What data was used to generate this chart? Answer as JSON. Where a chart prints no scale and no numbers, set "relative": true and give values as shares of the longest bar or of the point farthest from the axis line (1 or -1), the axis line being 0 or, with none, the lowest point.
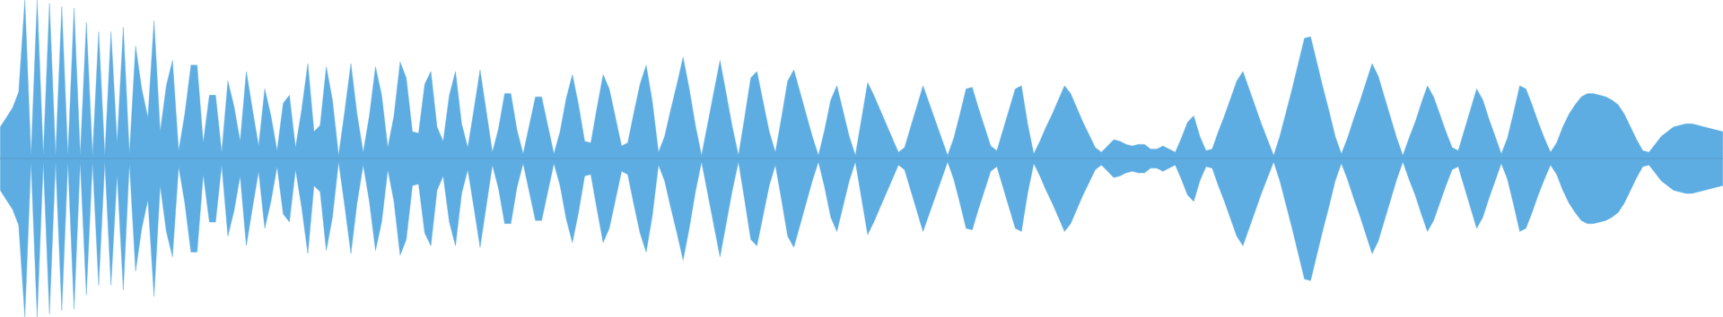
{
  "chart_data": {
    "type": "area",
    "relative": true,
    "categories": [
      null,
      null,
      null,
      null,
      null,
      null,
      null,
      null,
      null,
      null,
      null,
      null,
      null,
      null,
      null,
      null,
      null,
      null,
      null,
      null,
      null,
      null,
      null,
      null,
      null,
      null,
      null,
      null,
      null,
      null,
      null,
      null,
      null,
      null,
      null,
      null,
      null,
      null,
      null,
      null,
      null,
      null,
      null,
      null,
      null,
      null,
      null,
      null,
      null,
      null,
      null,
      null,
      null,
      null,
      null,
      null,
      null,
      null,
      null,
      null,
      null,
      null,
      null,
      null,
      null,
      null,
      null,
      null,
      null,
      null,
      null,
      null,
      null,
      null,
      null,
      null,
      null,
      null,
      null,
      null,
      null,
      null,
      null,
      null,
      null,
      null,
      null,
      null,
      null,
      null,
      null,
      null,
      null,
      null,
      null,
      null,
      null,
      null,
      null,
      null,
      null,
      null,
      null,
      null,
      null,
      null,
      null,
      null,
      null,
      null,
      null,
      null,
      null,
      null,
      null,
      null,
      null,
      null,
      null,
      null,
      null,
      null,
      null,
      null,
      null,
      null,
      null,
      null,
      null,
      null,
      null,
      null,
      null,
      null,
      null,
      null,
      null,
      null,
      null,
      null,
      null,
      null,
      null,
      null,
      null,
      null,
      null,
      null,
      null,
      null,
      null,
      null,
      null,
      null,
      null,
      null,
      null,
      null,
      null,
      null,
      null,
      null,
      null,
      null,
      null,
      null,
      null,
      null,
      null,
      null,
      null,
      null,
      null,
      null,
      null,
      null,
      null,
      null,
      null,
      null,
      null,
      null,
      null,
      null,
      null,
      null,
      null,
      null,
      null,
      null,
      null,
      null,
      null,
      null,
      null,
      null,
      null,
      null,
      null,
      null,
      null,
      null,
      null,
      null,
      null,
      null,
      null,
      null,
      null,
      null,
      null,
      null,
      null,
      null,
      null,
      null,
      null,
      null,
      null,
      null,
      null,
      null,
      null,
      null,
      null,
      null,
      null,
      null,
      null,
      null,
      null,
      null,
      null,
      null,
      null,
      null,
      null,
      null,
      null,
      null,
      null,
      null,
      null,
      null,
      null,
      null,
      null,
      null,
      null,
      null,
      null,
      null,
      null,
      null,
      null,
      null,
      null,
      null,
      null,
      null,
      null,
      null,
      null,
      null,
      null,
      null,
      null,
      null,
      null,
      null,
      null,
      null,
      null,
      null,
      null,
      null,
      null,
      null,
      null,
      null,
      null
    ],
    "ref_lines": [
      {
        "axis": "y",
        "value": 0,
        "color": "#4a8ab5"
      }
    ],
    "series": [
      {
        "color": "#5dade2",
        "values": [
          0.2,
          0.26,
          0.32,
          0.42,
          1.0,
          0.02,
          1.0,
          0.02,
          0.98,
          0.02,
          0.96,
          0.02,
          0.95,
          0.02,
          0.86,
          0.02,
          0.8,
          0.02,
          0.8,
          0.1,
          0.83,
          0.03,
          0.71,
          0.44,
          0.26,
          0.87,
          0.17,
          0.46,
          0.62,
          0.05,
          0.28,
          0.59,
          0.59,
          0.1,
          0.4,
          0.4,
          0.04,
          0.49,
          0.33,
          0.11,
          0.55,
          0.31,
          0.08,
          0.44,
          0.27,
          0.05,
          0.35,
          0.4,
          0.07,
          0.31,
          0.6,
          0.17,
          0.21,
          0.58,
          0.37,
          0.02,
          0.3,
          0.6,
          0.28,
          0.04,
          0.27,
          0.58,
          0.4,
          0.07,
          0.27,
          0.61,
          0.51,
          0.17,
          0.16,
          0.47,
          0.55,
          0.2,
          0.11,
          0.4,
          0.55,
          0.22,
          0.07,
          0.31,
          0.56,
          0.3,
          0.04,
          0.19,
          0.41,
          0.41,
          0.18,
          0.03,
          0.21,
          0.39,
          0.39,
          0.21,
          0.03,
          0.17,
          0.38,
          0.53,
          0.34,
          0.11,
          0.1,
          0.32,
          0.53,
          0.44,
          0.26,
          0.08,
          0.1,
          0.29,
          0.47,
          0.59,
          0.36,
          0.04,
          0.14,
          0.31,
          0.47,
          0.64,
          0.44,
          0.21,
          0.02,
          0.22,
          0.42,
          0.62,
          0.41,
          0.2,
          0.02,
          0.26,
          0.51,
          0.55,
          0.36,
          0.17,
          0.04,
          0.26,
          0.49,
          0.56,
          0.42,
          0.28,
          0.14,
          0.02,
          0.18,
          0.37,
          0.46,
          0.3,
          0.14,
          0.02,
          0.25,
          0.48,
          0.4,
          0.31,
          0.22,
          0.13,
          0.04,
          0.07,
          0.2,
          0.33,
          0.46,
          0.35,
          0.24,
          0.13,
          0.02,
          0.13,
          0.28,
          0.44,
          0.45,
          0.32,
          0.2,
          0.08,
          0.05,
          0.18,
          0.31,
          0.44,
          0.46,
          0.22,
          0.03,
          0.11,
          0.2,
          0.28,
          0.37,
          0.46,
          0.41,
          0.32,
          0.23,
          0.15,
          0.07,
          0.04,
          0.08,
          0.12,
          0.11,
          0.09,
          0.08,
          0.09,
          0.09,
          0.06,
          0.06,
          0.08,
          0.06,
          0.04,
          0.13,
          0.23,
          0.27,
          0.14,
          0.05,
          0.06,
          0.17,
          0.27,
          0.38,
          0.49,
          0.55,
          0.44,
          0.33,
          0.22,
          0.12,
          0.02,
          0.14,
          0.29,
          0.44,
          0.6,
          0.76,
          0.77,
          0.61,
          0.45,
          0.3,
          0.14,
          0.03,
          0.13,
          0.25,
          0.36,
          0.48,
          0.6,
          0.52,
          0.39,
          0.26,
          0.13,
          0.02,
          0.13,
          0.23,
          0.35,
          0.46,
          0.39,
          0.28,
          0.17,
          0.07,
          0.05,
          0.18,
          0.31,
          0.44,
          0.37,
          0.25,
          0.14,
          0.03,
          0.13,
          0.29,
          0.46,
          0.44,
          0.34,
          0.23,
          0.13,
          0.04,
          0.1,
          0.2,
          0.28,
          0.34,
          0.39,
          0.41,
          0.41,
          0.4,
          0.39,
          0.37,
          0.34,
          0.28,
          0.2,
          0.12,
          0.05,
          0.04,
          0.09,
          0.14,
          0.17,
          0.2,
          0.21,
          0.22,
          0.22,
          0.21,
          0.2,
          0.19,
          0.18,
          0.17
        ]
      },
      {
        "color": "#5dade2",
        "values": [
          -0.2,
          -0.26,
          -0.32,
          -0.42,
          -1.0,
          -0.02,
          -1.0,
          -0.02,
          -0.98,
          -0.02,
          -0.96,
          -0.02,
          -0.95,
          -0.02,
          -0.86,
          -0.02,
          -0.8,
          -0.02,
          -0.8,
          -0.1,
          -0.83,
          -0.03,
          -0.71,
          -0.44,
          -0.26,
          -0.87,
          -0.17,
          -0.46,
          -0.62,
          -0.05,
          -0.28,
          -0.59,
          -0.59,
          -0.1,
          -0.4,
          -0.4,
          -0.04,
          -0.49,
          -0.33,
          -0.11,
          -0.55,
          -0.31,
          -0.08,
          -0.44,
          -0.27,
          -0.05,
          -0.35,
          -0.4,
          -0.07,
          -0.31,
          -0.6,
          -0.17,
          -0.21,
          -0.58,
          -0.37,
          -0.02,
          -0.3,
          -0.6,
          -0.28,
          -0.04,
          -0.27,
          -0.58,
          -0.4,
          -0.07,
          -0.27,
          -0.61,
          -0.51,
          -0.17,
          -0.16,
          -0.47,
          -0.55,
          -0.2,
          -0.11,
          -0.4,
          -0.55,
          -0.22,
          -0.07,
          -0.31,
          -0.56,
          -0.3,
          -0.04,
          -0.19,
          -0.41,
          -0.41,
          -0.18,
          -0.03,
          -0.21,
          -0.39,
          -0.39,
          -0.21,
          -0.03,
          -0.17,
          -0.38,
          -0.53,
          -0.34,
          -0.11,
          -0.1,
          -0.32,
          -0.53,
          -0.44,
          -0.26,
          -0.08,
          -0.1,
          -0.29,
          -0.47,
          -0.59,
          -0.36,
          -0.04,
          -0.14,
          -0.31,
          -0.47,
          -0.64,
          -0.44,
          -0.21,
          -0.02,
          -0.22,
          -0.42,
          -0.62,
          -0.41,
          -0.2,
          -0.02,
          -0.26,
          -0.51,
          -0.55,
          -0.36,
          -0.17,
          -0.04,
          -0.26,
          -0.49,
          -0.56,
          -0.42,
          -0.28,
          -0.14,
          -0.02,
          -0.18,
          -0.37,
          -0.46,
          -0.3,
          -0.14,
          -0.02,
          -0.25,
          -0.48,
          -0.4,
          -0.31,
          -0.22,
          -0.13,
          -0.04,
          -0.07,
          -0.2,
          -0.33,
          -0.46,
          -0.35,
          -0.24,
          -0.13,
          -0.02,
          -0.13,
          -0.28,
          -0.44,
          -0.45,
          -0.32,
          -0.2,
          -0.08,
          -0.05,
          -0.18,
          -0.31,
          -0.44,
          -0.46,
          -0.22,
          -0.03,
          -0.11,
          -0.2,
          -0.28,
          -0.37,
          -0.46,
          -0.41,
          -0.32,
          -0.23,
          -0.15,
          -0.07,
          -0.04,
          -0.08,
          -0.12,
          -0.11,
          -0.09,
          -0.08,
          -0.09,
          -0.09,
          -0.06,
          -0.06,
          -0.08,
          -0.06,
          -0.04,
          -0.13,
          -0.23,
          -0.27,
          -0.14,
          -0.05,
          -0.06,
          -0.17,
          -0.27,
          -0.38,
          -0.49,
          -0.55,
          -0.44,
          -0.33,
          -0.22,
          -0.12,
          -0.02,
          -0.14,
          -0.29,
          -0.44,
          -0.6,
          -0.76,
          -0.77,
          -0.61,
          -0.45,
          -0.3,
          -0.14,
          -0.03,
          -0.13,
          -0.25,
          -0.36,
          -0.48,
          -0.6,
          -0.52,
          -0.39,
          -0.26,
          -0.13,
          -0.02,
          -0.13,
          -0.23,
          -0.35,
          -0.46,
          -0.39,
          -0.28,
          -0.17,
          -0.07,
          -0.05,
          -0.18,
          -0.31,
          -0.44,
          -0.37,
          -0.25,
          -0.14,
          -0.03,
          -0.13,
          -0.29,
          -0.46,
          -0.44,
          -0.34,
          -0.23,
          -0.13,
          -0.04,
          -0.1,
          -0.2,
          -0.28,
          -0.34,
          -0.39,
          -0.41,
          -0.41,
          -0.4,
          -0.39,
          -0.37,
          -0.34,
          -0.28,
          -0.2,
          -0.12,
          -0.05,
          -0.04,
          -0.09,
          -0.14,
          -0.17,
          -0.2,
          -0.21,
          -0.22,
          -0.22,
          -0.21,
          -0.2,
          -0.19,
          -0.18,
          -0.17
        ]
      }
    ]
  }
}
